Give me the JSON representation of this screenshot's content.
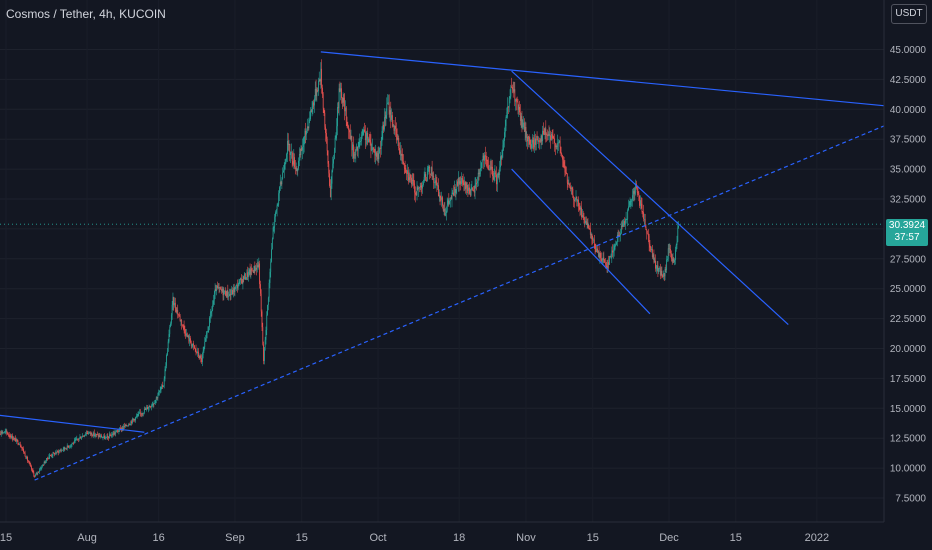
{
  "header": {
    "title": "Cosmos / Tether, 4h, KUCOIN",
    "currency": "USDT"
  },
  "price_tag": {
    "price": "30.3924",
    "countdown": "37:57"
  },
  "colors": {
    "background": "#131722",
    "up": "#26a69a",
    "down": "#ef5350",
    "trendline": "#2962ff",
    "axis_text": "#b2b5be"
  },
  "chart_data": {
    "type": "candlestick",
    "title": "Cosmos / Tether, 4h, KUCOIN",
    "x_tick_labels": [
      "15",
      "Aug",
      "16",
      "Sep",
      "15",
      "Oct",
      "18",
      "Nov",
      "15",
      "Dec",
      "15",
      "2022"
    ],
    "y_tick_labels": [
      "7.5000",
      "10.0000",
      "12.5000",
      "15.0000",
      "17.5000",
      "20.0000",
      "22.5000",
      "25.0000",
      "27.5000",
      "30.0000",
      "32.5000",
      "35.0000",
      "37.5000",
      "40.0000",
      "42.5000",
      "45.0000"
    ],
    "ylim": [
      6,
      47.5
    ],
    "price_path": [
      [
        "2021-07-15",
        13.0
      ],
      [
        "2021-07-18",
        12.0
      ],
      [
        "2021-07-21",
        9.3
      ],
      [
        "2021-07-24",
        11.0
      ],
      [
        "2021-07-28",
        11.8
      ],
      [
        "2021-08-01",
        13.0
      ],
      [
        "2021-08-05",
        12.5
      ],
      [
        "2021-08-09",
        13.5
      ],
      [
        "2021-08-12",
        14.5
      ],
      [
        "2021-08-15",
        15.5
      ],
      [
        "2021-08-17",
        17.0
      ],
      [
        "2021-08-19",
        24.0
      ],
      [
        "2021-08-22",
        21.0
      ],
      [
        "2021-08-25",
        19.0
      ],
      [
        "2021-08-28",
        25.0
      ],
      [
        "2021-08-31",
        24.5
      ],
      [
        "2021-09-03",
        26.0
      ],
      [
        "2021-09-06",
        27.0
      ],
      [
        "2021-09-07",
        19.0
      ],
      [
        "2021-09-09",
        30.0
      ],
      [
        "2021-09-12",
        37.0
      ],
      [
        "2021-09-14",
        35.0
      ],
      [
        "2021-09-17",
        40.0
      ],
      [
        "2021-09-19",
        43.0
      ],
      [
        "2021-09-21",
        33.0
      ],
      [
        "2021-09-23",
        42.0
      ],
      [
        "2021-09-26",
        36.0
      ],
      [
        "2021-09-28",
        38.0
      ],
      [
        "2021-10-01",
        36.0
      ],
      [
        "2021-10-03",
        40.5
      ],
      [
        "2021-10-06",
        36.0
      ],
      [
        "2021-10-09",
        33.0
      ],
      [
        "2021-10-12",
        35.0
      ],
      [
        "2021-10-15",
        31.5
      ],
      [
        "2021-10-18",
        34.0
      ],
      [
        "2021-10-21",
        33.0
      ],
      [
        "2021-10-23",
        36.0
      ],
      [
        "2021-10-26",
        34.0
      ],
      [
        "2021-10-29",
        42.0
      ],
      [
        "2021-10-31",
        39.0
      ],
      [
        "2021-11-02",
        37.0
      ],
      [
        "2021-11-05",
        38.0
      ],
      [
        "2021-11-08",
        37.0
      ],
      [
        "2021-11-10",
        33.5
      ],
      [
        "2021-11-12",
        32.0
      ],
      [
        "2021-11-14",
        30.0
      ],
      [
        "2021-11-16",
        28.0
      ],
      [
        "2021-11-18",
        27.0
      ],
      [
        "2021-11-20",
        29.0
      ],
      [
        "2021-11-22",
        31.0
      ],
      [
        "2021-11-24",
        33.5
      ],
      [
        "2021-11-26",
        30.5
      ],
      [
        "2021-11-28",
        27.0
      ],
      [
        "2021-11-30",
        26.0
      ],
      [
        "2021-12-01",
        28.5
      ],
      [
        "2021-12-02",
        27.0
      ],
      [
        "2021-12-03",
        30.4
      ]
    ],
    "trendlines": [
      {
        "style": "solid",
        "from": [
          "2021-07-01",
          15.0
        ],
        "to": [
          "2021-08-13",
          13.0
        ]
      },
      {
        "style": "solid",
        "from": [
          "2021-09-19",
          44.8
        ],
        "to": [
          "2022-01-15",
          40.3
        ]
      },
      {
        "style": "solid",
        "from": [
          "2021-10-29",
          43.2
        ],
        "to": [
          "2021-12-26",
          22.0
        ]
      },
      {
        "style": "solid",
        "from": [
          "2021-10-29",
          35.0
        ],
        "to": [
          "2021-11-27",
          22.9
        ]
      },
      {
        "style": "dashed",
        "from": [
          "2021-07-21",
          9.0
        ],
        "to": [
          "2022-01-15",
          38.6
        ]
      }
    ]
  }
}
